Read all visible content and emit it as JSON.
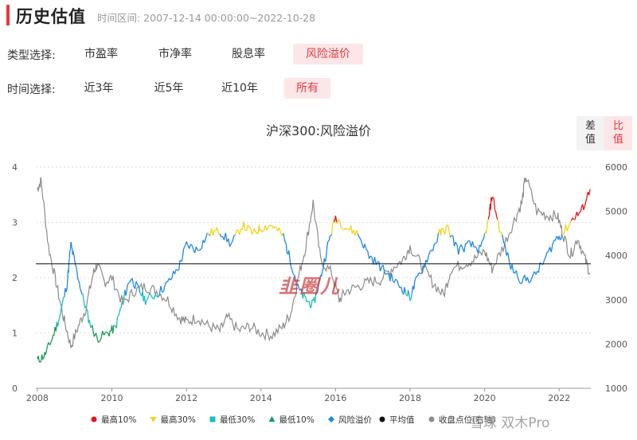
{
  "header": {
    "title": "历史估值",
    "time_range": "时间区间: 2007-12-14 00:00:00~2022-10-28"
  },
  "filters": {
    "type": {
      "label": "类型选择:",
      "options": [
        "市盈率",
        "市净率",
        "股息率",
        "风险溢价"
      ],
      "selected": 3
    },
    "time": {
      "label": "时间选择:",
      "options": [
        "近3年",
        "近5年",
        "近10年",
        "所有"
      ],
      "selected": 3
    }
  },
  "mode_toggle": {
    "diff": "差\n值",
    "ratio": "比\n值",
    "selected": "ratio"
  },
  "colors": {
    "accent": "#e4393c",
    "max10": "#e8141e",
    "max30": "#f5d21a",
    "min30": "#1bbfbf",
    "min10": "#1a9a5a",
    "risk": "#1e88e5",
    "index": "#8c8c8c",
    "avg": "#111111"
  },
  "chart_data": {
    "type": "line",
    "title": "沪深300:风险溢价",
    "x_range": [
      "2007-12-14",
      "2022-10-28"
    ],
    "x_ticks": [
      "2008",
      "2010",
      "2012",
      "2014",
      "2016",
      "2018",
      "2020",
      "2022"
    ],
    "y_left": {
      "range": [
        0,
        4
      ],
      "ticks": [
        "0",
        "1",
        "2",
        "3",
        "4"
      ]
    },
    "y_right": {
      "range": [
        1000,
        6000
      ],
      "ticks": [
        "1000",
        "2000",
        "3000",
        "4000",
        "5000",
        "6000"
      ]
    },
    "average": 2.25,
    "thresholds": {
      "max10": 3.05,
      "max30": 2.78,
      "min30": 1.72,
      "min10": 1.12
    },
    "legend_position": "bottom",
    "series": [
      {
        "name": "风险溢价",
        "axis": "left",
        "points": [
          [
            2008.0,
            0.5
          ],
          [
            2008.2,
            0.6
          ],
          [
            2008.4,
            0.9
          ],
          [
            2008.6,
            1.3
          ],
          [
            2008.8,
            1.9
          ],
          [
            2008.9,
            2.6
          ],
          [
            2009.0,
            2.3
          ],
          [
            2009.2,
            1.7
          ],
          [
            2009.4,
            1.2
          ],
          [
            2009.6,
            0.9
          ],
          [
            2009.9,
            1.0
          ],
          [
            2010.1,
            1.1
          ],
          [
            2010.3,
            1.6
          ],
          [
            2010.5,
            2.0
          ],
          [
            2010.7,
            1.8
          ],
          [
            2010.9,
            1.6
          ],
          [
            2011.2,
            1.7
          ],
          [
            2011.5,
            1.9
          ],
          [
            2011.8,
            2.2
          ],
          [
            2012.0,
            2.6
          ],
          [
            2012.3,
            2.5
          ],
          [
            2012.6,
            2.8
          ],
          [
            2012.9,
            2.85
          ],
          [
            2013.2,
            2.6
          ],
          [
            2013.5,
            2.95
          ],
          [
            2013.8,
            2.8
          ],
          [
            2014.0,
            2.9
          ],
          [
            2014.3,
            2.95
          ],
          [
            2014.6,
            2.75
          ],
          [
            2014.8,
            2.3
          ],
          [
            2015.0,
            1.8
          ],
          [
            2015.2,
            1.6
          ],
          [
            2015.4,
            1.5
          ],
          [
            2015.6,
            2.0
          ],
          [
            2015.8,
            2.6
          ],
          [
            2016.0,
            3.1
          ],
          [
            2016.3,
            2.9
          ],
          [
            2016.6,
            2.8
          ],
          [
            2016.9,
            2.4
          ],
          [
            2017.2,
            2.2
          ],
          [
            2017.5,
            2.0
          ],
          [
            2017.8,
            1.8
          ],
          [
            2018.0,
            1.65
          ],
          [
            2018.2,
            2.0
          ],
          [
            2018.5,
            2.4
          ],
          [
            2018.8,
            2.8
          ],
          [
            2019.0,
            2.9
          ],
          [
            2019.3,
            2.5
          ],
          [
            2019.6,
            2.6
          ],
          [
            2019.9,
            2.5
          ],
          [
            2020.1,
            3.0
          ],
          [
            2020.2,
            3.5
          ],
          [
            2020.4,
            2.9
          ],
          [
            2020.7,
            2.2
          ],
          [
            2021.0,
            1.95
          ],
          [
            2021.3,
            2.0
          ],
          [
            2021.6,
            2.3
          ],
          [
            2021.9,
            2.7
          ],
          [
            2022.1,
            2.8
          ],
          [
            2022.4,
            3.1
          ],
          [
            2022.6,
            3.2
          ],
          [
            2022.83,
            3.6
          ]
        ]
      },
      {
        "name": "收盘点位(右轴)",
        "axis": "right",
        "points": [
          [
            2008.0,
            5500
          ],
          [
            2008.1,
            5700
          ],
          [
            2008.3,
            4200
          ],
          [
            2008.5,
            3400
          ],
          [
            2008.7,
            2600
          ],
          [
            2008.9,
            1950
          ],
          [
            2009.1,
            2400
          ],
          [
            2009.3,
            2800
          ],
          [
            2009.5,
            3600
          ],
          [
            2009.6,
            3800
          ],
          [
            2009.8,
            3400
          ],
          [
            2010.0,
            3500
          ],
          [
            2010.3,
            2900
          ],
          [
            2010.6,
            3200
          ],
          [
            2010.9,
            3300
          ],
          [
            2011.2,
            3200
          ],
          [
            2011.5,
            3000
          ],
          [
            2011.8,
            2600
          ],
          [
            2012.0,
            2500
          ],
          [
            2012.3,
            2600
          ],
          [
            2012.6,
            2400
          ],
          [
            2012.9,
            2300
          ],
          [
            2013.1,
            2600
          ],
          [
            2013.4,
            2300
          ],
          [
            2013.7,
            2400
          ],
          [
            2014.0,
            2250
          ],
          [
            2014.3,
            2200
          ],
          [
            2014.6,
            2400
          ],
          [
            2014.8,
            2700
          ],
          [
            2015.0,
            3500
          ],
          [
            2015.2,
            4200
          ],
          [
            2015.4,
            5200
          ],
          [
            2015.6,
            3900
          ],
          [
            2015.9,
            3600
          ],
          [
            2016.1,
            3000
          ],
          [
            2016.3,
            3200
          ],
          [
            2016.6,
            3300
          ],
          [
            2016.9,
            3400
          ],
          [
            2017.2,
            3450
          ],
          [
            2017.5,
            3700
          ],
          [
            2017.8,
            3900
          ],
          [
            2018.0,
            4200
          ],
          [
            2018.3,
            3800
          ],
          [
            2018.6,
            3400
          ],
          [
            2018.9,
            3100
          ],
          [
            2019.1,
            3700
          ],
          [
            2019.4,
            3800
          ],
          [
            2019.7,
            3900
          ],
          [
            2020.0,
            4100
          ],
          [
            2020.2,
            3700
          ],
          [
            2020.5,
            4200
          ],
          [
            2020.8,
            4800
          ],
          [
            2021.0,
            5200
          ],
          [
            2021.1,
            5800
          ],
          [
            2021.4,
            5000
          ],
          [
            2021.7,
            4900
          ],
          [
            2021.95,
            4900
          ],
          [
            2022.1,
            4500
          ],
          [
            2022.3,
            4000
          ],
          [
            2022.5,
            4400
          ],
          [
            2022.7,
            3900
          ],
          [
            2022.83,
            3600
          ]
        ]
      }
    ],
    "legend": [
      {
        "label": "最高10%",
        "color": "#e8141e",
        "marker": "circle"
      },
      {
        "label": "最高30%",
        "color": "#f5d21a",
        "marker": "triangle-down"
      },
      {
        "label": "最低30%",
        "color": "#1bbfbf",
        "marker": "square"
      },
      {
        "label": "最低10%",
        "color": "#1a9a5a",
        "marker": "triangle-up"
      },
      {
        "label": "风险溢价",
        "color": "#1e88e5",
        "marker": "diamond"
      },
      {
        "label": "平均值",
        "color": "#111111",
        "marker": "circle"
      },
      {
        "label": "收盘点位(右轴)",
        "color": "#8c8c8c",
        "marker": "circle"
      }
    ]
  },
  "watermark": {
    "logo": "韭圈儿",
    "text": "雪球 双木Pro"
  }
}
